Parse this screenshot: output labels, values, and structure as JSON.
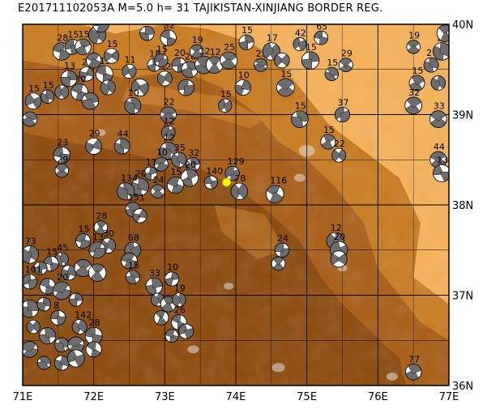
{
  "title": "E201711102053A  M=5.0  h=  31  TAJIKISTAN-XINJIANG BORDER REG.",
  "map": {
    "lon_range": [
      71,
      77
    ],
    "lat_range": [
      36,
      40
    ],
    "x_ticks": [
      "71E",
      "72E",
      "73E",
      "74E",
      "75E",
      "76E",
      "77E"
    ],
    "y_ticks": [
      "36N",
      "37N",
      "38N",
      "39N",
      "40N"
    ],
    "colors": {
      "lowland": "#f5b25a",
      "mid": "#c97d22",
      "high": "#8a4a10",
      "peak": "#e8e0d8",
      "grid": "#000000",
      "beachball_dark": "#6d6d6d",
      "beachball_light": "#ffffff",
      "event_marker": "#ffff00"
    },
    "event": {
      "lon": 73.87,
      "lat": 38.25
    }
  },
  "mechanisms": [
    {
      "lon": 71.15,
      "lat": 39.15,
      "label": "15"
    },
    {
      "lon": 71.35,
      "lat": 39.2,
      "label": "15"
    },
    {
      "lon": 71.55,
      "lat": 39.25,
      "label": ""
    },
    {
      "lon": 71.1,
      "lat": 38.95,
      "label": ""
    },
    {
      "lon": 71.55,
      "lat": 39.7,
      "label": "28"
    },
    {
      "lon": 71.7,
      "lat": 39.75,
      "label": "15"
    },
    {
      "lon": 71.9,
      "lat": 39.45,
      "label": "25"
    },
    {
      "lon": 71.8,
      "lat": 39.25,
      "label": "30"
    },
    {
      "lon": 72.0,
      "lat": 39.6,
      "label": ""
    },
    {
      "lon": 71.65,
      "lat": 39.4,
      "label": "13"
    },
    {
      "lon": 72.15,
      "lat": 39.45,
      "label": "15"
    },
    {
      "lon": 72.25,
      "lat": 39.65,
      "label": "15"
    },
    {
      "lon": 71.95,
      "lat": 39.15,
      "label": ""
    },
    {
      "lon": 72.2,
      "lat": 39.3,
      "label": ""
    },
    {
      "lon": 71.85,
      "lat": 39.75,
      "label": "15"
    },
    {
      "lon": 72.05,
      "lat": 39.88,
      "label": "32"
    },
    {
      "lon": 72.1,
      "lat": 40.0,
      "label": "10"
    },
    {
      "lon": 72.75,
      "lat": 39.9,
      "label": "13"
    },
    {
      "lon": 72.5,
      "lat": 39.48,
      "label": "11"
    },
    {
      "lon": 72.65,
      "lat": 39.3,
      "label": ""
    },
    {
      "lon": 72.55,
      "lat": 39.1,
      "label": "10"
    },
    {
      "lon": 72.85,
      "lat": 39.55,
      "label": "18"
    },
    {
      "lon": 73.0,
      "lat": 39.4,
      "label": "12"
    },
    {
      "lon": 72.95,
      "lat": 39.6,
      "label": "15"
    },
    {
      "lon": 73.05,
      "lat": 39.85,
      "label": "32"
    },
    {
      "lon": 73.2,
      "lat": 39.55,
      "label": "20"
    },
    {
      "lon": 73.35,
      "lat": 39.5,
      "label": "26"
    },
    {
      "lon": 73.45,
      "lat": 39.7,
      "label": "19"
    },
    {
      "lon": 73.55,
      "lat": 39.55,
      "label": "12"
    },
    {
      "lon": 73.7,
      "lat": 39.55,
      "label": "12"
    },
    {
      "lon": 73.9,
      "lat": 39.6,
      "label": "25"
    },
    {
      "lon": 73.3,
      "lat": 39.3,
      "label": ""
    },
    {
      "lon": 73.05,
      "lat": 39.0,
      "label": "22"
    },
    {
      "lon": 73.85,
      "lat": 39.1,
      "label": "15"
    },
    {
      "lon": 74.1,
      "lat": 39.3,
      "label": "10"
    },
    {
      "lon": 74.15,
      "lat": 39.8,
      "label": "15"
    },
    {
      "lon": 74.35,
      "lat": 39.55,
      "label": "23"
    },
    {
      "lon": 74.5,
      "lat": 39.7,
      "label": "17"
    },
    {
      "lon": 74.65,
      "lat": 39.6,
      "label": ""
    },
    {
      "lon": 74.7,
      "lat": 39.3,
      "label": "15"
    },
    {
      "lon": 74.9,
      "lat": 39.78,
      "label": "42"
    },
    {
      "lon": 75.05,
      "lat": 39.6,
      "label": "15"
    },
    {
      "lon": 75.2,
      "lat": 39.85,
      "label": "65"
    },
    {
      "lon": 75.35,
      "lat": 39.45,
      "label": "15"
    },
    {
      "lon": 75.55,
      "lat": 39.55,
      "label": "29"
    },
    {
      "lon": 74.9,
      "lat": 38.95,
      "label": "15"
    },
    {
      "lon": 75.5,
      "lat": 39.0,
      "label": "37"
    },
    {
      "lon": 75.3,
      "lat": 38.7,
      "label": "15"
    },
    {
      "lon": 75.45,
      "lat": 38.55,
      "label": "22"
    },
    {
      "lon": 73.05,
      "lat": 38.8,
      "label": "12"
    },
    {
      "lon": 73.05,
      "lat": 38.6,
      "label": "12"
    },
    {
      "lon": 72.4,
      "lat": 38.65,
      "label": "44"
    },
    {
      "lon": 72.0,
      "lat": 38.65,
      "label": "29"
    },
    {
      "lon": 71.55,
      "lat": 38.55,
      "label": "23"
    },
    {
      "lon": 71.55,
      "lat": 38.38,
      "label": "29"
    },
    {
      "lon": 72.95,
      "lat": 38.45,
      "label": "10"
    },
    {
      "lon": 73.2,
      "lat": 38.5,
      "label": "35"
    },
    {
      "lon": 73.4,
      "lat": 38.45,
      "label": "32"
    },
    {
      "lon": 73.35,
      "lat": 38.3,
      "label": "20"
    },
    {
      "lon": 72.8,
      "lat": 38.35,
      "label": "11"
    },
    {
      "lon": 72.65,
      "lat": 38.2,
      "label": "20"
    },
    {
      "lon": 72.9,
      "lat": 38.15,
      "label": "24"
    },
    {
      "lon": 72.45,
      "lat": 38.15,
      "label": "134"
    },
    {
      "lon": 73.15,
      "lat": 38.22,
      "label": "15"
    },
    {
      "lon": 73.65,
      "lat": 38.25,
      "label": "140"
    },
    {
      "lon": 73.95,
      "lat": 38.35,
      "label": "129"
    },
    {
      "lon": 74.05,
      "lat": 38.15,
      "label": "78"
    },
    {
      "lon": 74.55,
      "lat": 38.12,
      "label": "116"
    },
    {
      "lon": 72.55,
      "lat": 37.95,
      "label": "151"
    },
    {
      "lon": 72.65,
      "lat": 37.88,
      "label": ""
    },
    {
      "lon": 72.1,
      "lat": 37.75,
      "label": "28"
    },
    {
      "lon": 71.85,
      "lat": 37.6,
      "label": "15"
    },
    {
      "lon": 72.2,
      "lat": 37.55,
      "label": "30"
    },
    {
      "lon": 72.05,
      "lat": 37.5,
      "label": "13"
    },
    {
      "lon": 72.55,
      "lat": 37.5,
      "label": "68"
    },
    {
      "lon": 72.5,
      "lat": 37.38,
      "label": ""
    },
    {
      "lon": 71.55,
      "lat": 37.4,
      "label": "45"
    },
    {
      "lon": 71.4,
      "lat": 37.35,
      "label": "15"
    },
    {
      "lon": 71.25,
      "lat": 37.3,
      "label": ""
    },
    {
      "lon": 71.65,
      "lat": 37.25,
      "label": ""
    },
    {
      "lon": 71.85,
      "lat": 37.3,
      "label": ""
    },
    {
      "lon": 72.05,
      "lat": 37.25,
      "label": ""
    },
    {
      "lon": 71.1,
      "lat": 37.45,
      "label": "73"
    },
    {
      "lon": 71.1,
      "lat": 37.15,
      "label": "101"
    },
    {
      "lon": 71.35,
      "lat": 37.1,
      "label": ""
    },
    {
      "lon": 71.55,
      "lat": 37.05,
      "label": "20"
    },
    {
      "lon": 71.75,
      "lat": 36.95,
      "label": ""
    },
    {
      "lon": 72.55,
      "lat": 37.2,
      "label": "15"
    },
    {
      "lon": 72.85,
      "lat": 37.1,
      "label": "33"
    },
    {
      "lon": 73.1,
      "lat": 37.18,
      "label": "10"
    },
    {
      "lon": 72.9,
      "lat": 36.95,
      "label": ""
    },
    {
      "lon": 73.05,
      "lat": 36.9,
      "label": ""
    },
    {
      "lon": 73.2,
      "lat": 36.95,
      "label": "19"
    },
    {
      "lon": 72.95,
      "lat": 36.75,
      "label": ""
    },
    {
      "lon": 73.2,
      "lat": 36.7,
      "label": "26"
    },
    {
      "lon": 73.1,
      "lat": 36.55,
      "label": ""
    },
    {
      "lon": 73.3,
      "lat": 36.6,
      "label": ""
    },
    {
      "lon": 71.1,
      "lat": 36.85,
      "label": ""
    },
    {
      "lon": 71.3,
      "lat": 36.9,
      "label": ""
    },
    {
      "lon": 71.5,
      "lat": 36.75,
      "label": "8"
    },
    {
      "lon": 71.15,
      "lat": 36.65,
      "label": ""
    },
    {
      "lon": 71.35,
      "lat": 36.55,
      "label": ""
    },
    {
      "lon": 71.1,
      "lat": 36.4,
      "label": ""
    },
    {
      "lon": 71.55,
      "lat": 36.45,
      "label": ""
    },
    {
      "lon": 71.3,
      "lat": 36.25,
      "label": ""
    },
    {
      "lon": 71.55,
      "lat": 36.25,
      "label": ""
    },
    {
      "lon": 71.75,
      "lat": 36.45,
      "label": ""
    },
    {
      "lon": 71.8,
      "lat": 36.65,
      "label": "142"
    },
    {
      "lon": 72.0,
      "lat": 36.55,
      "label": "28"
    },
    {
      "lon": 72.0,
      "lat": 36.4,
      "label": ""
    },
    {
      "lon": 71.75,
      "lat": 36.3,
      "label": ""
    },
    {
      "lon": 74.65,
      "lat": 37.5,
      "label": "24"
    },
    {
      "lon": 74.6,
      "lat": 37.35,
      "label": ""
    },
    {
      "lon": 75.4,
      "lat": 37.6,
      "label": "12"
    },
    {
      "lon": 75.45,
      "lat": 37.5,
      "label": "20"
    },
    {
      "lon": 75.45,
      "lat": 37.4,
      "label": ""
    },
    {
      "lon": 76.5,
      "lat": 36.15,
      "label": "77"
    },
    {
      "lon": 76.5,
      "lat": 39.75,
      "label": "19"
    },
    {
      "lon": 76.55,
      "lat": 39.35,
      "label": "15"
    },
    {
      "lon": 76.75,
      "lat": 39.55,
      "label": "2"
    },
    {
      "lon": 76.9,
      "lat": 39.7,
      "label": "29"
    },
    {
      "lon": 76.95,
      "lat": 39.9,
      "label": "15"
    },
    {
      "lon": 76.85,
      "lat": 39.35,
      "label": ""
    },
    {
      "lon": 76.5,
      "lat": 39.1,
      "label": "32"
    },
    {
      "lon": 76.85,
      "lat": 38.95,
      "label": "33"
    },
    {
      "lon": 76.85,
      "lat": 38.5,
      "label": "44"
    },
    {
      "lon": 76.9,
      "lat": 38.35,
      "label": "13"
    }
  ]
}
